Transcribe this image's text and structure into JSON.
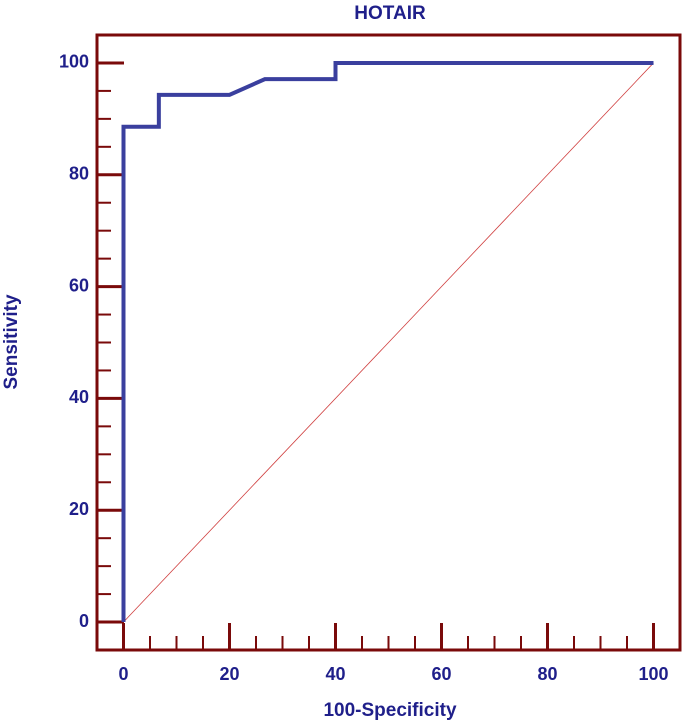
{
  "chart_data": {
    "type": "line",
    "title": "HOTAIR",
    "x_label": "100-Specificity",
    "y_label": "Sensitivity",
    "series": [
      {
        "color": "#3a3f9e",
        "x": [
          0,
          0,
          6.67,
          6.67,
          20,
          26.67,
          40,
          40,
          100
        ],
        "values": [
          0,
          88.6,
          88.6,
          94.3,
          94.3,
          97.1,
          97.1,
          100,
          100
        ]
      }
    ],
    "reference_line": {
      "color": "#d04040",
      "x": [
        0,
        100
      ],
      "values": [
        0,
        100
      ]
    },
    "xlim": [
      -5,
      105
    ],
    "ylim": [
      -5,
      105
    ],
    "xticks": [
      0,
      20,
      40,
      60,
      80,
      100
    ],
    "yticks": [
      0,
      20,
      40,
      60,
      80,
      100
    ],
    "xminorticks": [
      5,
      10,
      15,
      25,
      30,
      35,
      45,
      50,
      55,
      65,
      70,
      75,
      85,
      90,
      95
    ],
    "yminorticks": [
      5,
      10,
      15,
      25,
      30,
      35,
      45,
      50,
      55,
      65,
      70,
      75,
      85,
      90,
      95
    ],
    "frame_color": "#7a0a0a"
  }
}
